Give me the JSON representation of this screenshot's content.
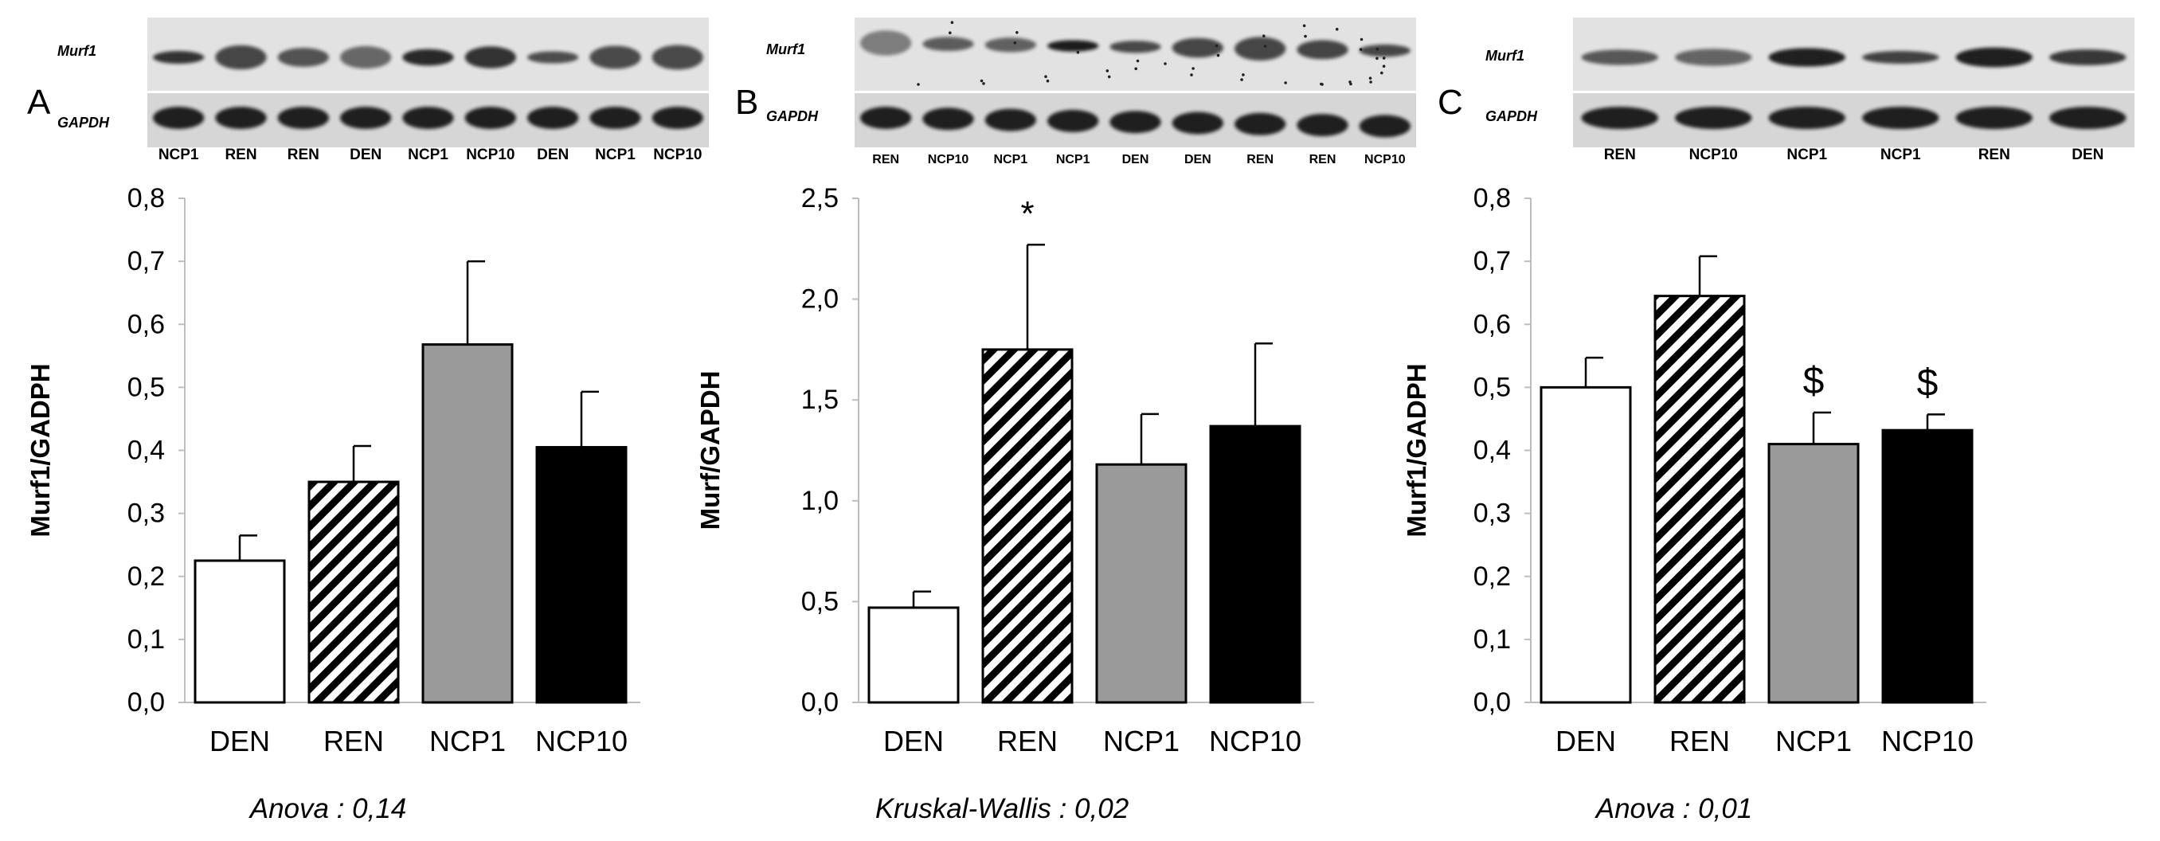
{
  "colors": {
    "DEN": "#ffffff",
    "REN": "hatch",
    "NCP1": "#9a9a9a",
    "NCP10": "#000000",
    "axis": "#bdbdbd",
    "blot_background": "#dcdcdc",
    "band": "#141414"
  },
  "chart_data": [
    {
      "panel": "A",
      "type": "bar",
      "categories": [
        "DEN",
        "REN",
        "NCP1",
        "NCP10"
      ],
      "values": [
        0.225,
        0.35,
        0.568,
        0.405
      ],
      "errors": [
        0.04,
        0.057,
        0.132,
        0.088
      ],
      "ylabel": "Murf1/GADPH",
      "ylim": [
        0,
        0.8
      ],
      "yticks": [
        "0,0",
        "0,1",
        "0,2",
        "0,3",
        "0,4",
        "0,5",
        "0,6",
        "0,7",
        "0,8"
      ],
      "annotations": [
        "",
        "",
        "",
        ""
      ],
      "stat": "Anova : 0,14",
      "blot": {
        "top_label": "Murf1",
        "bottom_label": "GAPDH",
        "lanes": [
          "NCP1",
          "REN",
          "REN",
          "DEN",
          "NCP1",
          "NCP10",
          "DEN",
          "NCP1",
          "NCP10"
        ]
      }
    },
    {
      "panel": "B",
      "type": "bar",
      "categories": [
        "DEN",
        "REN",
        "NCP1",
        "NCP10"
      ],
      "values": [
        0.47,
        1.75,
        1.18,
        1.37
      ],
      "errors": [
        0.08,
        0.52,
        0.25,
        0.41
      ],
      "ylabel": "Murf/GAPDH",
      "ylim": [
        0,
        2.5
      ],
      "yticks": [
        "0,0",
        "0,5",
        "1,0",
        "1,5",
        "2,0",
        "2,5"
      ],
      "annotations": [
        "",
        "*",
        "",
        ""
      ],
      "stat": "Kruskal-Wallis : 0,02",
      "blot": {
        "top_label": "Murf1",
        "bottom_label": "GAPDH",
        "lanes": [
          "REN",
          "NCP10",
          "NCP1",
          "NCP1",
          "DEN",
          "DEN",
          "REN",
          "REN",
          "NCP10"
        ]
      }
    },
    {
      "panel": "C",
      "type": "bar",
      "categories": [
        "DEN",
        "REN",
        "NCP1",
        "NCP10"
      ],
      "values": [
        0.5,
        0.645,
        0.41,
        0.432
      ],
      "errors": [
        0.047,
        0.063,
        0.05,
        0.025
      ],
      "ylabel": "Murf1/GADPH",
      "ylim": [
        0,
        0.8
      ],
      "yticks": [
        "0,0",
        "0,1",
        "0,2",
        "0,3",
        "0,4",
        "0,5",
        "0,6",
        "0,7",
        "0,8"
      ],
      "annotations": [
        "",
        "",
        "$",
        "$"
      ],
      "stat": "Anova : 0,01",
      "blot": {
        "top_label": "Murf1",
        "bottom_label": "GAPDH",
        "lanes": [
          "REN",
          "NCP10",
          "NCP1",
          "NCP1",
          "REN",
          "DEN"
        ]
      }
    }
  ]
}
